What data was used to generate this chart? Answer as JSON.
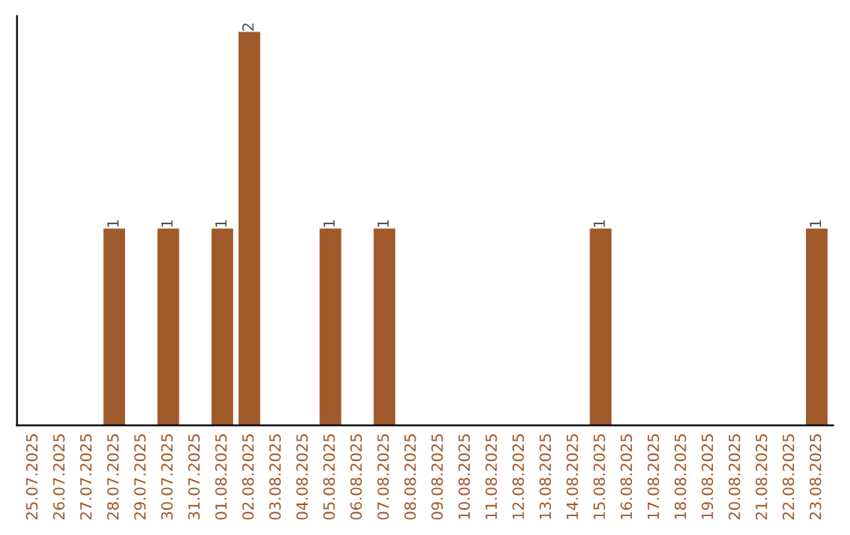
{
  "chart_data": {
    "type": "bar",
    "categories": [
      "25.07.2025",
      "26.07.2025",
      "27.07.2025",
      "28.07.2025",
      "29.07.2025",
      "30.07.2025",
      "31.07.2025",
      "01.08.2025",
      "02.08.2025",
      "03.08.2025",
      "04.08.2025",
      "05.08.2025",
      "06.08.2025",
      "07.08.2025",
      "08.08.2025",
      "09.08.2025",
      "10.08.2025",
      "11.08.2025",
      "12.08.2025",
      "13.08.2025",
      "14.08.2025",
      "15.08.2025",
      "16.08.2025",
      "17.08.2025",
      "18.08.2025",
      "19.08.2025",
      "20.08.2025",
      "21.08.2025",
      "22.08.2025",
      "23.08.2025"
    ],
    "values": [
      0,
      0,
      0,
      1,
      0,
      1,
      0,
      1,
      2,
      0,
      0,
      1,
      0,
      1,
      0,
      0,
      0,
      0,
      0,
      0,
      0,
      1,
      0,
      0,
      0,
      0,
      0,
      0,
      0,
      1
    ],
    "value_labels": [
      null,
      null,
      null,
      "1",
      null,
      "1",
      null,
      "1",
      "2",
      null,
      null,
      "1",
      null,
      "1",
      null,
      null,
      null,
      null,
      null,
      null,
      null,
      "1",
      null,
      null,
      null,
      null,
      null,
      null,
      null,
      "1"
    ],
    "color": "#a0592b",
    "ylim": [
      0,
      2.08
    ],
    "tick_labels": "x",
    "grid": false,
    "legend": false
  }
}
